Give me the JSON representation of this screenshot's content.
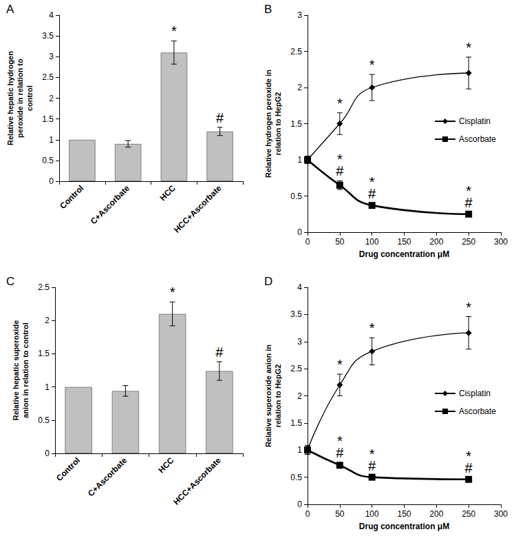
{
  "chart_data": [
    {
      "type": "bar",
      "title": "A",
      "y_label": "Relative hepatic hydrogen peroxide in relation to control",
      "categories": [
        "Control",
        "C+Ascorbate",
        "HCC",
        "HCC+Ascorbate"
      ],
      "values": [
        1,
        0.9,
        3.1,
        1.2
      ],
      "errors": [
        0,
        0.08,
        0.28,
        0.1
      ],
      "color": "#c0c0c0",
      "ylim": [
        0,
        4
      ],
      "yticks": [
        0,
        0.5,
        1,
        1.5,
        2,
        2.5,
        3,
        3.5,
        4
      ],
      "grid": false,
      "annotations": [
        {
          "x": "HCC",
          "text": "*"
        },
        {
          "x": "HCC+Ascorbate",
          "text": "#"
        }
      ]
    },
    {
      "type": "line",
      "title": "B",
      "y_label": "Relative hydrogen peroxide in relation to HepG2",
      "x_label": "Drug concentration μM",
      "x": [
        0,
        50,
        100,
        250
      ],
      "series": [
        {
          "name": "Cisplatin",
          "color": "#000000",
          "marker": "diamond",
          "line_style": "solid",
          "values": [
            1,
            1.5,
            2.0,
            2.2
          ],
          "errors": [
            0.05,
            0.15,
            0.18,
            0.22
          ]
        },
        {
          "name": "Ascorbate",
          "color": "#000000",
          "marker": "square",
          "line_style": "solid",
          "values": [
            1,
            0.65,
            0.37,
            0.25
          ],
          "errors": [
            0.05,
            0.06,
            0.03,
            0.03
          ]
        }
      ],
      "xlim": [
        0,
        300
      ],
      "xticks": [
        0,
        50,
        100,
        150,
        200,
        250,
        300
      ],
      "ylim": [
        0,
        3
      ],
      "yticks": [
        0,
        0.5,
        1,
        1.5,
        2,
        2.5,
        3
      ],
      "grid": false,
      "legend": "right",
      "annotations": [
        {
          "series": "Cisplatin",
          "x": 50,
          "text": "*"
        },
        {
          "series": "Cisplatin",
          "x": 100,
          "text": "*"
        },
        {
          "series": "Cisplatin",
          "x": 250,
          "text": "*"
        },
        {
          "series": "Ascorbate",
          "x": 50,
          "text": "*"
        },
        {
          "series": "Ascorbate",
          "x": 50,
          "text": "#"
        },
        {
          "series": "Ascorbate",
          "x": 100,
          "text": "*"
        },
        {
          "series": "Ascorbate",
          "x": 100,
          "text": "#"
        },
        {
          "series": "Ascorbate",
          "x": 250,
          "text": "*"
        },
        {
          "series": "Ascorbate",
          "x": 250,
          "text": "#"
        }
      ]
    },
    {
      "type": "bar",
      "title": "C",
      "y_label": "Relative hepatic superoxide anion in relation to control",
      "categories": [
        "Control",
        "C+Ascorbate",
        "HCC",
        "HCC+Ascorbate"
      ],
      "values": [
        1,
        0.94,
        2.1,
        1.24
      ],
      "errors": [
        0,
        0.08,
        0.18,
        0.14
      ],
      "color": "#c0c0c0",
      "ylim": [
        0,
        2.5
      ],
      "yticks": [
        0,
        0.5,
        1,
        1.5,
        2,
        2.5
      ],
      "grid": false,
      "annotations": [
        {
          "x": "HCC",
          "text": "*"
        },
        {
          "x": "HCC+Ascorbate",
          "text": "#"
        }
      ]
    },
    {
      "type": "line",
      "title": "D",
      "y_label": "Relative superoxide anion in relation to HepG2",
      "x_label": "Drug concentration μM",
      "x": [
        0,
        50,
        100,
        250
      ],
      "series": [
        {
          "name": "Cisplatin",
          "color": "#000000",
          "marker": "diamond",
          "line_style": "solid",
          "values": [
            1,
            2.2,
            2.82,
            3.16
          ],
          "errors": [
            0.08,
            0.2,
            0.25,
            0.3
          ]
        },
        {
          "name": "Ascorbate",
          "color": "#000000",
          "marker": "square",
          "line_style": "solid",
          "values": [
            1,
            0.72,
            0.5,
            0.46
          ],
          "errors": [
            0.08,
            0.05,
            0.03,
            0.03
          ]
        }
      ],
      "xlim": [
        0,
        300
      ],
      "xticks": [
        0,
        50,
        100,
        150,
        200,
        250,
        300
      ],
      "ylim": [
        0,
        4
      ],
      "yticks": [
        0,
        0.5,
        1,
        1.5,
        2,
        2.5,
        3,
        3.5,
        4
      ],
      "grid": false,
      "legend": "right",
      "annotations": [
        {
          "series": "Cisplatin",
          "x": 50,
          "text": "*"
        },
        {
          "series": "Cisplatin",
          "x": 100,
          "text": "*"
        },
        {
          "series": "Cisplatin",
          "x": 250,
          "text": "*"
        },
        {
          "series": "Ascorbate",
          "x": 50,
          "text": "*"
        },
        {
          "series": "Ascorbate",
          "x": 50,
          "text": "#"
        },
        {
          "series": "Ascorbate",
          "x": 100,
          "text": "*"
        },
        {
          "series": "Ascorbate",
          "x": 100,
          "text": "#"
        },
        {
          "series": "Ascorbate",
          "x": 250,
          "text": "*"
        },
        {
          "series": "Ascorbate",
          "x": 250,
          "text": "#"
        }
      ]
    }
  ]
}
